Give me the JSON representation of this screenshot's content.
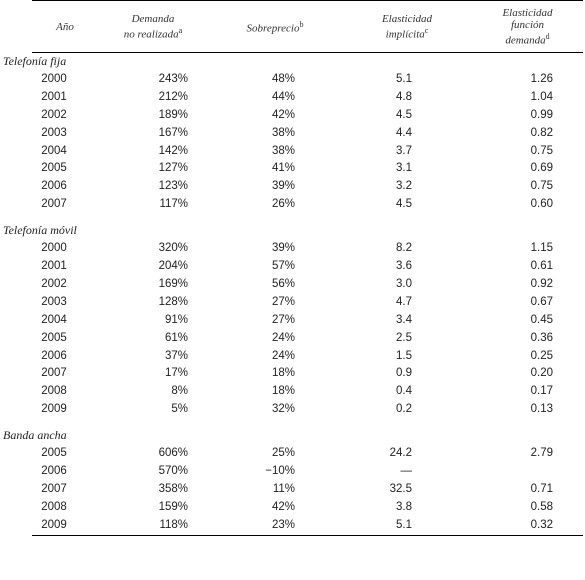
{
  "headers": {
    "year": "Año",
    "demand_l1": "Demanda",
    "demand_l2": "no realizada",
    "demand_sup": "a",
    "overprice": "Sobreprecio",
    "overprice_sup": "b",
    "elasticity_l1": "Elasticidad",
    "elasticity_l2": "implícita",
    "elasticity_sup": "c",
    "function_l1": "Elasticidad",
    "function_l2": "función",
    "function_l3": "demanda",
    "function_sup": "d"
  },
  "sections": [
    {
      "title": "Telefonía fija",
      "rows": [
        {
          "year": "2000",
          "demand": "243%",
          "overprice": "48%",
          "elasticity": "5.1",
          "function": "1.26"
        },
        {
          "year": "2001",
          "demand": "212%",
          "overprice": "44%",
          "elasticity": "4.8",
          "function": "1.04"
        },
        {
          "year": "2002",
          "demand": "189%",
          "overprice": "42%",
          "elasticity": "4.5",
          "function": "0.99"
        },
        {
          "year": "2003",
          "demand": "167%",
          "overprice": "38%",
          "elasticity": "4.4",
          "function": "0.82"
        },
        {
          "year": "2004",
          "demand": "142%",
          "overprice": "38%",
          "elasticity": "3.7",
          "function": "0.75"
        },
        {
          "year": "2005",
          "demand": "127%",
          "overprice": "41%",
          "elasticity": "3.1",
          "function": "0.69"
        },
        {
          "year": "2006",
          "demand": "123%",
          "overprice": "39%",
          "elasticity": "3.2",
          "function": "0.75"
        },
        {
          "year": "2007",
          "demand": "117%",
          "overprice": "26%",
          "elasticity": "4.5",
          "function": "0.60"
        }
      ]
    },
    {
      "title": "Telefonía móvil",
      "rows": [
        {
          "year": "2000",
          "demand": "320%",
          "overprice": "39%",
          "elasticity": "8.2",
          "function": "1.15"
        },
        {
          "year": "2001",
          "demand": "204%",
          "overprice": "57%",
          "elasticity": "3.6",
          "function": "0.61"
        },
        {
          "year": "2002",
          "demand": "169%",
          "overprice": "56%",
          "elasticity": "3.0",
          "function": "0.92"
        },
        {
          "year": "2003",
          "demand": "128%",
          "overprice": "27%",
          "elasticity": "4.7",
          "function": "0.67"
        },
        {
          "year": "2004",
          "demand": "91%",
          "overprice": "27%",
          "elasticity": "3.4",
          "function": "0.45"
        },
        {
          "year": "2005",
          "demand": "61%",
          "overprice": "24%",
          "elasticity": "2.5",
          "function": "0.36"
        },
        {
          "year": "2006",
          "demand": "37%",
          "overprice": "24%",
          "elasticity": "1.5",
          "function": "0.25"
        },
        {
          "year": "2007",
          "demand": "17%",
          "overprice": "18%",
          "elasticity": "0.9",
          "function": "0.20"
        },
        {
          "year": "2008",
          "demand": "8%",
          "overprice": "18%",
          "elasticity": "0.4",
          "function": "0.17"
        },
        {
          "year": "2009",
          "demand": "5%",
          "overprice": "32%",
          "elasticity": "0.2",
          "function": "0.13"
        }
      ]
    },
    {
      "title": "Banda ancha",
      "rows": [
        {
          "year": "2005",
          "demand": "606%",
          "overprice": "25%",
          "elasticity": "24.2",
          "function": "2.79"
        },
        {
          "year": "2006",
          "demand": "570%",
          "overprice": "−10%",
          "elasticity": "—",
          "function": ""
        },
        {
          "year": "2007",
          "demand": "358%",
          "overprice": "11%",
          "elasticity": "32.5",
          "function": "0.71"
        },
        {
          "year": "2008",
          "demand": "159%",
          "overprice": "42%",
          "elasticity": "3.8",
          "function": "0.58"
        },
        {
          "year": "2009",
          "demand": "118%",
          "overprice": "23%",
          "elasticity": "5.1",
          "function": "0.32"
        }
      ]
    }
  ]
}
